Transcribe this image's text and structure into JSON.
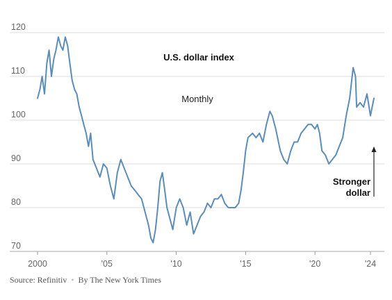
{
  "chart_data": {
    "type": "line",
    "title": "U.S. dollar index",
    "subtitle": "Monthly",
    "ylim": [
      70,
      120
    ],
    "y_ticks": [
      "120",
      "110",
      "100",
      "90",
      "80",
      "70"
    ],
    "x_ticks": [
      "2000",
      "'05",
      "'10",
      "'15",
      "'20",
      "'24"
    ],
    "grid": true,
    "line_color": "#5b8db8",
    "annotation": {
      "line1": "Stronger",
      "line2": "dollar"
    },
    "series": [
      {
        "x": [
          2000.0,
          2000.17,
          2000.33,
          2000.5,
          2000.67,
          2000.83,
          2001.0,
          2001.17,
          2001.33,
          2001.5,
          2001.67,
          2001.83,
          2002.0,
          2002.17,
          2002.33,
          2002.5,
          2002.67,
          2002.83,
          2003.0,
          2003.17,
          2003.33,
          2003.5,
          2003.67,
          2003.83,
          2004.0,
          2004.25,
          2004.5,
          2004.75,
          2005.0,
          2005.25,
          2005.5,
          2005.75,
          2006.0,
          2006.25,
          2006.5,
          2006.75,
          2007.0,
          2007.25,
          2007.5,
          2007.75,
          2008.0,
          2008.17,
          2008.33,
          2008.5,
          2008.67,
          2008.83,
          2009.0,
          2009.17,
          2009.33,
          2009.5,
          2009.75,
          2010.0,
          2010.25,
          2010.5,
          2010.75,
          2011.0,
          2011.25,
          2011.5,
          2011.75,
          2012.0,
          2012.25,
          2012.5,
          2012.75,
          2013.0,
          2013.25,
          2013.5,
          2013.75,
          2014.0,
          2014.25,
          2014.5,
          2014.67,
          2014.83,
          2015.0,
          2015.17,
          2015.5,
          2015.75,
          2016.0,
          2016.25,
          2016.5,
          2016.75,
          2016.92,
          2017.17,
          2017.5,
          2017.75,
          2018.0,
          2018.25,
          2018.5,
          2018.75,
          2019.0,
          2019.25,
          2019.5,
          2019.75,
          2020.0,
          2020.17,
          2020.33,
          2020.5,
          2020.75,
          2021.0,
          2021.25,
          2021.5,
          2021.75,
          2022.0,
          2022.25,
          2022.5,
          2022.75,
          2022.92,
          2023.0,
          2023.25,
          2023.5,
          2023.75,
          2024.0,
          2024.25
        ],
        "y": [
          105,
          107,
          110,
          106,
          113,
          116,
          110,
          114,
          116,
          119,
          117,
          116,
          119,
          117,
          113,
          109,
          107,
          106,
          103,
          101,
          99,
          97,
          94,
          97,
          91,
          89,
          87,
          90,
          89,
          85,
          82,
          88,
          91,
          89,
          87,
          85,
          84,
          83,
          82,
          79,
          76,
          73,
          72,
          75,
          80,
          86,
          88,
          84,
          80,
          78,
          75,
          80,
          82,
          80,
          76,
          79,
          74,
          76,
          78,
          79,
          81,
          80,
          82,
          82,
          83,
          81,
          80,
          80,
          80,
          81,
          84,
          88,
          93,
          96,
          97,
          96,
          97,
          95,
          99,
          102,
          101,
          98,
          93,
          91,
          90,
          93,
          95,
          95,
          97,
          98,
          99,
          99,
          98,
          99,
          97,
          93,
          92,
          90,
          91,
          92,
          94,
          96,
          101,
          105,
          112,
          110,
          103,
          104,
          103,
          106,
          101,
          105
        ]
      }
    ]
  },
  "source": {
    "source_text": "Source: Refinitiv",
    "separator": "•",
    "credit": "By The New York Times"
  }
}
